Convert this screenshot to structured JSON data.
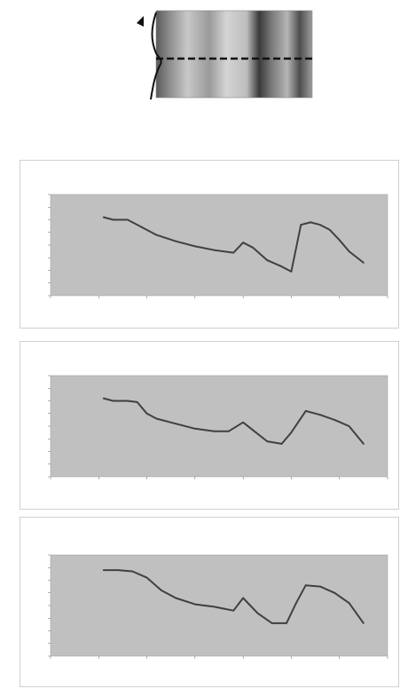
{
  "top_figure": {
    "caption": "",
    "image_y_ticks": [
      "",
      "",
      ""
    ],
    "image_x_ticks": [
      "",
      "",
      "",
      "",
      "",
      ""
    ]
  },
  "colors": {
    "plot_area": "#c0c0c0",
    "line": "#404040",
    "frame": "#d0d0d0"
  },
  "chart_data": [
    {
      "type": "line",
      "title": "",
      "subtitle": "",
      "xlabel": "",
      "ylabel": "",
      "xlim": [
        0,
        7
      ],
      "ylim": [
        0,
        8
      ],
      "grid": false,
      "x": [
        1.1,
        1.3,
        1.6,
        1.9,
        2.2,
        2.6,
        3.0,
        3.4,
        3.8,
        4.0,
        4.2,
        4.5,
        4.8,
        5.0,
        5.2,
        5.4,
        5.6,
        5.8,
        6.0,
        6.2,
        6.5
      ],
      "values": [
        6.2,
        6.0,
        6.0,
        5.4,
        4.8,
        4.3,
        3.9,
        3.6,
        3.4,
        4.2,
        3.8,
        2.8,
        2.3,
        1.9,
        5.6,
        5.8,
        5.6,
        5.2,
        4.4,
        3.5,
        2.6
      ]
    },
    {
      "type": "line",
      "title": "",
      "subtitle": "",
      "xlabel": "",
      "ylabel": "",
      "xlim": [
        0,
        7
      ],
      "ylim": [
        0,
        8
      ],
      "grid": false,
      "x": [
        1.1,
        1.3,
        1.6,
        1.8,
        2.0,
        2.2,
        2.6,
        3.0,
        3.4,
        3.7,
        4.0,
        4.2,
        4.5,
        4.8,
        5.0,
        5.3,
        5.6,
        5.9,
        6.2,
        6.5
      ],
      "values": [
        6.2,
        6.0,
        6.0,
        5.9,
        5.0,
        4.6,
        4.2,
        3.8,
        3.6,
        3.6,
        4.3,
        3.7,
        2.8,
        2.6,
        3.5,
        5.2,
        4.9,
        4.5,
        4.0,
        2.6
      ]
    },
    {
      "type": "line",
      "title": "",
      "subtitle": "",
      "xlabel": "",
      "ylabel": "",
      "xlim": [
        0,
        7
      ],
      "ylim": [
        0,
        8
      ],
      "grid": false,
      "x": [
        1.1,
        1.4,
        1.7,
        2.0,
        2.3,
        2.6,
        3.0,
        3.4,
        3.8,
        4.0,
        4.3,
        4.6,
        4.9,
        5.1,
        5.3,
        5.6,
        5.9,
        6.2,
        6.5
      ],
      "values": [
        6.8,
        6.8,
        6.7,
        6.2,
        5.2,
        4.6,
        4.1,
        3.9,
        3.6,
        4.6,
        3.4,
        2.6,
        2.6,
        4.2,
        5.6,
        5.5,
        5.0,
        4.2,
        2.6
      ]
    }
  ]
}
